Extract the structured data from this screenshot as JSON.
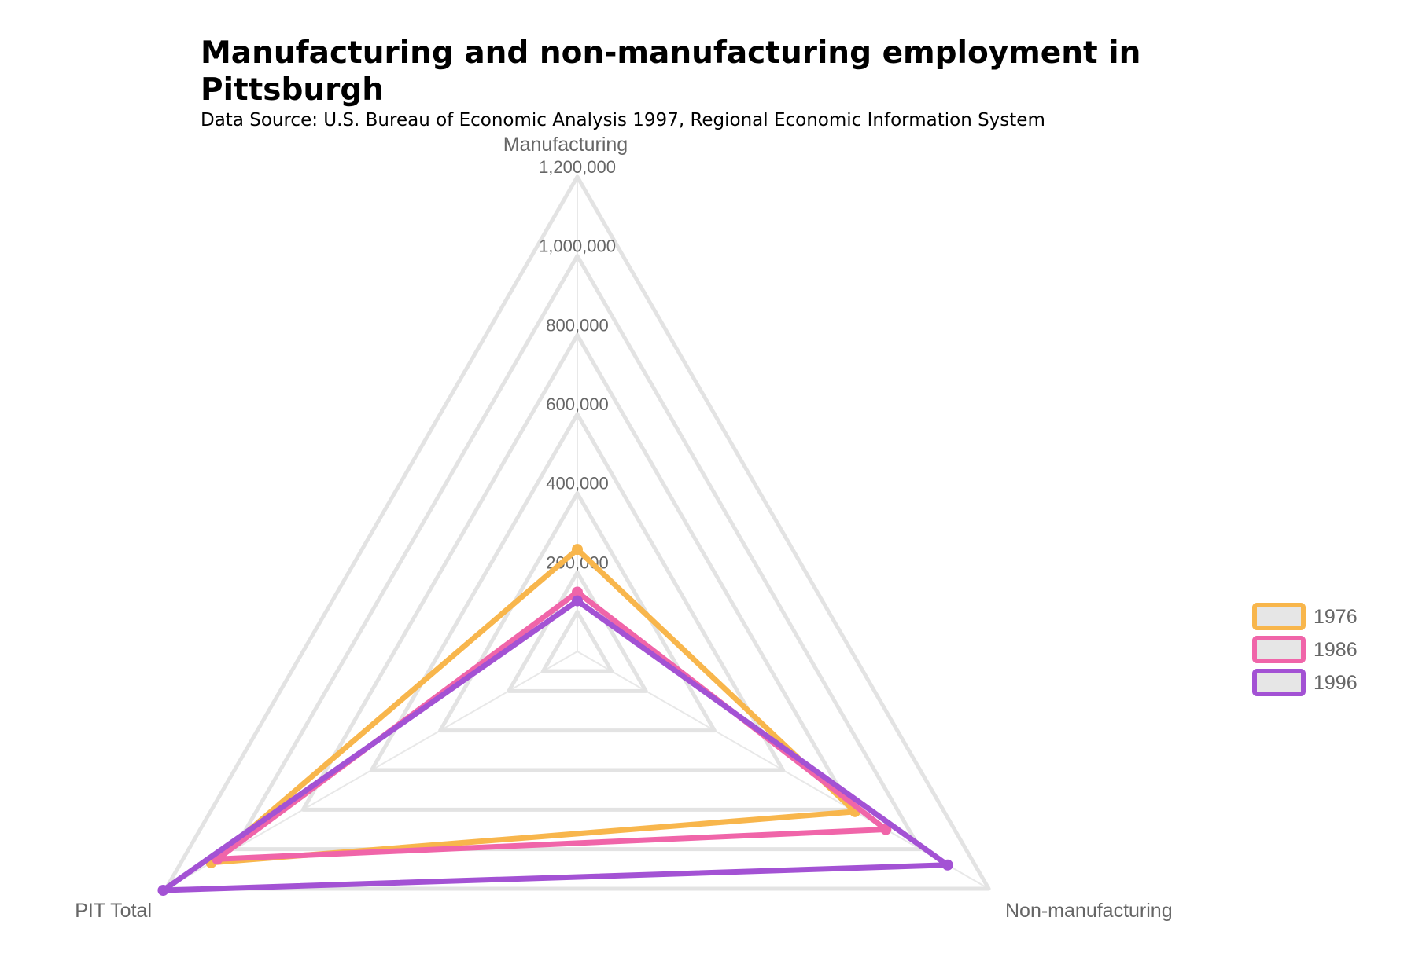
{
  "chart_data": {
    "type": "radar",
    "title_lines": [
      "Manufacturing and non-manufacturing employment in",
      "Pittsburgh"
    ],
    "subtitle": "Data Source: U.S. Bureau of Economic Analysis 1997, Regional Economic Information System",
    "axes": [
      "Manufacturing",
      "Non-manufacturing",
      "PIT Total"
    ],
    "r_range": [
      0,
      1200000
    ],
    "ticks": [
      200000,
      400000,
      600000,
      800000,
      1000000,
      1200000
    ],
    "tick_labels": [
      "200,000",
      "400,000",
      "600,000",
      "800,000",
      "1,000,000",
      "1,200,000"
    ],
    "grid": true,
    "legend_position": "right",
    "series": [
      {
        "name": "1976",
        "color": "#f8b64c",
        "values": [
          258000,
          810000,
          1068000
        ]
      },
      {
        "name": "1986",
        "color": "#f065a9",
        "values": [
          150000,
          900000,
          1050000
        ]
      },
      {
        "name": "1996",
        "color": "#a352d4",
        "values": [
          128000,
          1080000,
          1208000
        ]
      }
    ]
  }
}
